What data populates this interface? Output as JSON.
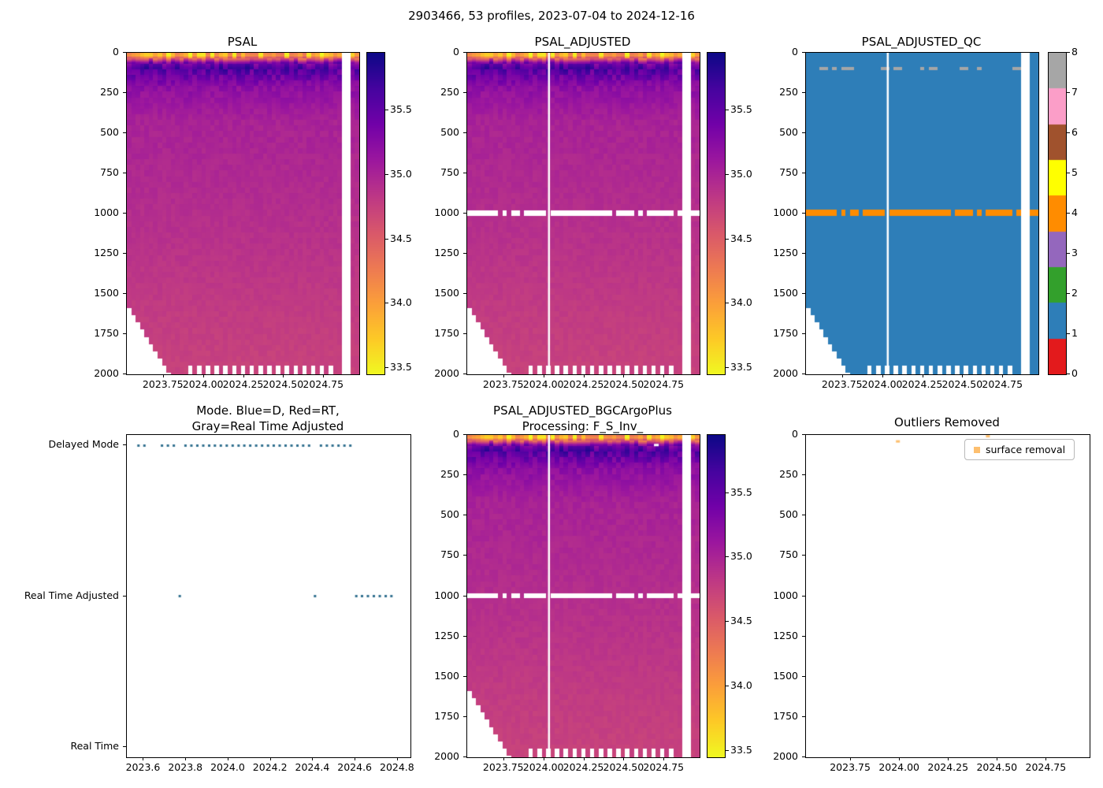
{
  "figure": {
    "title": "2903466, 53 profiles, 2023-07-04 to 2024-12-16"
  },
  "style": {
    "background": "#ffffff",
    "plasma_stops": [
      "#0d0887",
      "#46039f",
      "#7201a8",
      "#9c179e",
      "#bd3786",
      "#d8576b",
      "#ed7953",
      "#fb9f3a",
      "#fdca26",
      "#f0f921"
    ],
    "qc_colors": [
      "#e31a1c",
      "#2e7eb8",
      "#33a02c",
      "#9467bd",
      "#ff8c00",
      "#ffff00",
      "#a0522d",
      "#fb9ec8",
      "#a6a6a6"
    ],
    "mode_dot_color": "#31708f",
    "outlier_color": "#fdbf6f",
    "axis_color": "#000000",
    "mask_color": "#ffffff"
  },
  "chart_data": [
    {
      "id": "psal",
      "type": "heatmap",
      "title": "PSAL",
      "x_range": [
        2023.52,
        2024.97
      ],
      "x_tick_values": [
        2023.75,
        2024.0,
        2024.25,
        2024.5,
        2024.75
      ],
      "x_tick_labels": [
        "2023.75",
        "2024.00",
        "2024.25",
        "2024.50",
        "2024.75"
      ],
      "y_range": [
        0,
        2000
      ],
      "y_inverted": true,
      "y_tick_values": [
        0,
        250,
        500,
        750,
        1000,
        1250,
        1500,
        1750,
        2000
      ],
      "y_tick_labels": [
        "0",
        "250",
        "500",
        "750",
        "1000",
        "1250",
        "1500",
        "1750",
        "2000"
      ],
      "n_profiles": 53,
      "value_range": [
        33.45,
        35.95
      ],
      "colorbar_tick_values": [
        35.5,
        35.0,
        34.5,
        34.0,
        33.5
      ],
      "colorbar_tick_labels": [
        "35.5",
        "35.0",
        "34.5",
        "34.0",
        "33.5"
      ],
      "depth_salinity_profile": [
        [
          0,
          33.9
        ],
        [
          15,
          33.75
        ],
        [
          35,
          34.5
        ],
        [
          60,
          35.35
        ],
        [
          95,
          35.6
        ],
        [
          140,
          35.45
        ],
        [
          220,
          35.2
        ],
        [
          420,
          35.02
        ],
        [
          800,
          34.95
        ],
        [
          1200,
          34.88
        ],
        [
          1600,
          34.8
        ],
        [
          2000,
          34.74
        ]
      ],
      "noise_bands": [
        [
          0,
          0.5
        ],
        [
          30,
          0.4
        ],
        [
          60,
          0.28
        ],
        [
          120,
          0.22
        ],
        [
          200,
          0.1
        ],
        [
          350,
          0.06
        ],
        [
          800,
          0.04
        ],
        [
          2000,
          0.035
        ]
      ],
      "missing_profiles": [
        49,
        50
      ],
      "line_gaps": [],
      "shallow_profiles": {
        "count": 10,
        "start_depth": 1580,
        "step": 45
      },
      "bottom_dash": {
        "from": 14,
        "to": 46,
        "depth": 1945
      },
      "gap_1000m": false,
      "qc": false
    },
    {
      "id": "psal_adjusted",
      "type": "heatmap",
      "title": "PSAL_ADJUSTED",
      "x_range": [
        2023.52,
        2024.97
      ],
      "x_tick_values": [
        2023.75,
        2024.0,
        2024.25,
        2024.5,
        2024.75
      ],
      "x_tick_labels": [
        "2023.75",
        "2024.00",
        "2024.25",
        "2024.50",
        "2024.75"
      ],
      "y_range": [
        0,
        2000
      ],
      "y_inverted": true,
      "y_tick_values": [
        0,
        250,
        500,
        750,
        1000,
        1250,
        1500,
        1750,
        2000
      ],
      "y_tick_labels": [
        "0",
        "250",
        "500",
        "750",
        "1000",
        "1250",
        "1500",
        "1750",
        "2000"
      ],
      "n_profiles": 53,
      "value_range": [
        33.45,
        35.95
      ],
      "colorbar_tick_values": [
        35.5,
        35.0,
        34.5,
        34.0,
        33.5
      ],
      "colorbar_tick_labels": [
        "35.5",
        "35.0",
        "34.5",
        "34.0",
        "33.5"
      ],
      "depth_salinity_profile": [
        [
          0,
          33.9
        ],
        [
          15,
          33.75
        ],
        [
          35,
          34.5
        ],
        [
          60,
          35.35
        ],
        [
          95,
          35.6
        ],
        [
          140,
          35.45
        ],
        [
          220,
          35.2
        ],
        [
          420,
          35.02
        ],
        [
          800,
          34.95
        ],
        [
          1200,
          34.88
        ],
        [
          1600,
          34.8
        ],
        [
          2000,
          34.74
        ]
      ],
      "noise_bands": [
        [
          0,
          0.5
        ],
        [
          30,
          0.4
        ],
        [
          60,
          0.28
        ],
        [
          120,
          0.22
        ],
        [
          200,
          0.1
        ],
        [
          350,
          0.06
        ],
        [
          800,
          0.04
        ],
        [
          2000,
          0.035
        ]
      ],
      "missing_profiles": [
        49,
        50
      ],
      "line_gaps": [
        2024.03
      ],
      "shallow_profiles": {
        "count": 10,
        "start_depth": 1580,
        "step": 45
      },
      "bottom_dash": {
        "from": 14,
        "to": 46,
        "depth": 1945
      },
      "flag_band": [
        978,
        1012
      ],
      "gap_1000m": true,
      "qc": false
    },
    {
      "id": "psal_adjusted_qc",
      "type": "heatmap",
      "title": "PSAL_ADJUSTED_QC",
      "x_range": [
        2023.52,
        2024.97
      ],
      "x_tick_values": [
        2023.75,
        2024.0,
        2024.25,
        2024.5,
        2024.75
      ],
      "x_tick_labels": [
        "2023.75",
        "2024.00",
        "2024.25",
        "2024.50",
        "2024.75"
      ],
      "y_range": [
        0,
        2000
      ],
      "y_inverted": true,
      "y_tick_values": [
        0,
        250,
        500,
        750,
        1000,
        1250,
        1500,
        1750,
        2000
      ],
      "y_tick_labels": [
        "0",
        "250",
        "500",
        "750",
        "1000",
        "1250",
        "1500",
        "1750",
        "2000"
      ],
      "n_profiles": 53,
      "qc": true,
      "qc_value_good": 1,
      "qc_value_flagged": 4,
      "colorbar_tick_values": [
        8,
        7,
        6,
        5,
        4,
        3,
        2,
        1,
        0
      ],
      "colorbar_tick_labels": [
        "8",
        "7",
        "6",
        "5",
        "4",
        "3",
        "2",
        "1",
        "0"
      ],
      "missing_profiles": [
        49,
        50
      ],
      "line_gaps": [
        2024.03
      ],
      "shallow_profiles": {
        "count": 10,
        "start_depth": 1580,
        "step": 45
      },
      "bottom_dash": {
        "from": 14,
        "to": 46,
        "depth": 1945
      },
      "flag_band": [
        978,
        1012
      ],
      "gray_band": [
        88,
        106
      ]
    },
    {
      "id": "mode",
      "type": "scatter",
      "title": "Mode. Blue=D, Red=RT,\nGray=Real Time Adjusted",
      "x_range": [
        2023.52,
        2024.86
      ],
      "x_tick_values": [
        2023.6,
        2023.8,
        2024.0,
        2024.2,
        2024.4,
        2024.6,
        2024.8
      ],
      "x_tick_labels": [
        "2023.6",
        "2023.8",
        "2024.0",
        "2024.2",
        "2024.4",
        "2024.6",
        "2024.8"
      ],
      "y_categories": [
        "Delayed Mode",
        "Real Time Adjusted",
        "Real Time"
      ],
      "delayed_mode_x": [
        2023.575,
        2023.603,
        2023.686,
        2023.714,
        2023.742,
        2023.797,
        2023.825,
        2023.853,
        2023.881,
        2023.909,
        2023.936,
        2023.964,
        2023.992,
        2024.02,
        2024.048,
        2024.075,
        2024.103,
        2024.131,
        2024.159,
        2024.187,
        2024.214,
        2024.242,
        2024.27,
        2024.298,
        2024.326,
        2024.353,
        2024.381,
        2024.437,
        2024.465,
        2024.492,
        2024.52,
        2024.548,
        2024.576
      ],
      "real_time_adjusted_x": [
        2023.77,
        2024.409,
        2024.604,
        2024.631,
        2024.659,
        2024.687,
        2024.715,
        2024.743,
        2024.77
      ],
      "real_time_x": []
    },
    {
      "id": "psal_adjusted_bgc",
      "type": "heatmap",
      "title": "PSAL_ADJUSTED_BGCArgoPlus\nProcessing: F_S_Inv_",
      "x_range": [
        2023.52,
        2024.97
      ],
      "x_tick_values": [
        2023.75,
        2024.0,
        2024.25,
        2024.5,
        2024.75
      ],
      "x_tick_labels": [
        "2023.75",
        "2024.00",
        "2024.25",
        "2024.50",
        "2024.75"
      ],
      "y_range": [
        0,
        2000
      ],
      "y_inverted": true,
      "y_tick_values": [
        0,
        250,
        500,
        750,
        1000,
        1250,
        1500,
        1750,
        2000
      ],
      "y_tick_labels": [
        "0",
        "250",
        "500",
        "750",
        "1000",
        "1250",
        "1500",
        "1750",
        "2000"
      ],
      "n_profiles": 53,
      "value_range": [
        33.45,
        35.95
      ],
      "colorbar_tick_values": [
        35.5,
        35.0,
        34.5,
        34.0,
        33.5
      ],
      "colorbar_tick_labels": [
        "35.5",
        "35.0",
        "34.5",
        "34.0",
        "33.5"
      ],
      "depth_salinity_profile": [
        [
          0,
          33.9
        ],
        [
          15,
          33.75
        ],
        [
          35,
          34.5
        ],
        [
          60,
          35.35
        ],
        [
          95,
          35.6
        ],
        [
          140,
          35.45
        ],
        [
          220,
          35.2
        ],
        [
          420,
          35.02
        ],
        [
          800,
          34.95
        ],
        [
          1200,
          34.88
        ],
        [
          1600,
          34.8
        ],
        [
          2000,
          34.74
        ]
      ],
      "noise_bands": [
        [
          0,
          0.5
        ],
        [
          30,
          0.4
        ],
        [
          60,
          0.28
        ],
        [
          120,
          0.22
        ],
        [
          200,
          0.1
        ],
        [
          350,
          0.06
        ],
        [
          800,
          0.04
        ],
        [
          2000,
          0.035
        ]
      ],
      "missing_profiles": [
        49,
        50
      ],
      "line_gaps": [
        2024.03
      ],
      "shallow_profiles": {
        "count": 10,
        "start_depth": 1580,
        "step": 45
      },
      "bottom_dash": {
        "from": 14,
        "to": 46,
        "depth": 1945
      },
      "flag_band": [
        978,
        1012
      ],
      "gap_1000m": true,
      "white_marks": [
        [
          2024.7,
          60
        ]
      ],
      "qc": false
    },
    {
      "id": "outliers",
      "type": "scatter",
      "title": "Outliers Removed",
      "x_range": [
        2023.52,
        2024.97
      ],
      "x_tick_values": [
        2023.75,
        2024.0,
        2024.25,
        2024.5,
        2024.75
      ],
      "x_tick_labels": [
        "2023.75",
        "2024.00",
        "2024.25",
        "2024.50",
        "2024.75"
      ],
      "y_range": [
        0,
        2000
      ],
      "y_inverted": true,
      "y_tick_values": [
        0,
        250,
        500,
        750,
        1000,
        1250,
        1500,
        1750,
        2000
      ],
      "y_tick_labels": [
        "0",
        "250",
        "500",
        "750",
        "1000",
        "1250",
        "1500",
        "1750",
        "2000"
      ],
      "legend_label": "surface removal",
      "points": [
        [
          2023.99,
          40
        ],
        [
          2024.45,
          8
        ]
      ]
    }
  ]
}
